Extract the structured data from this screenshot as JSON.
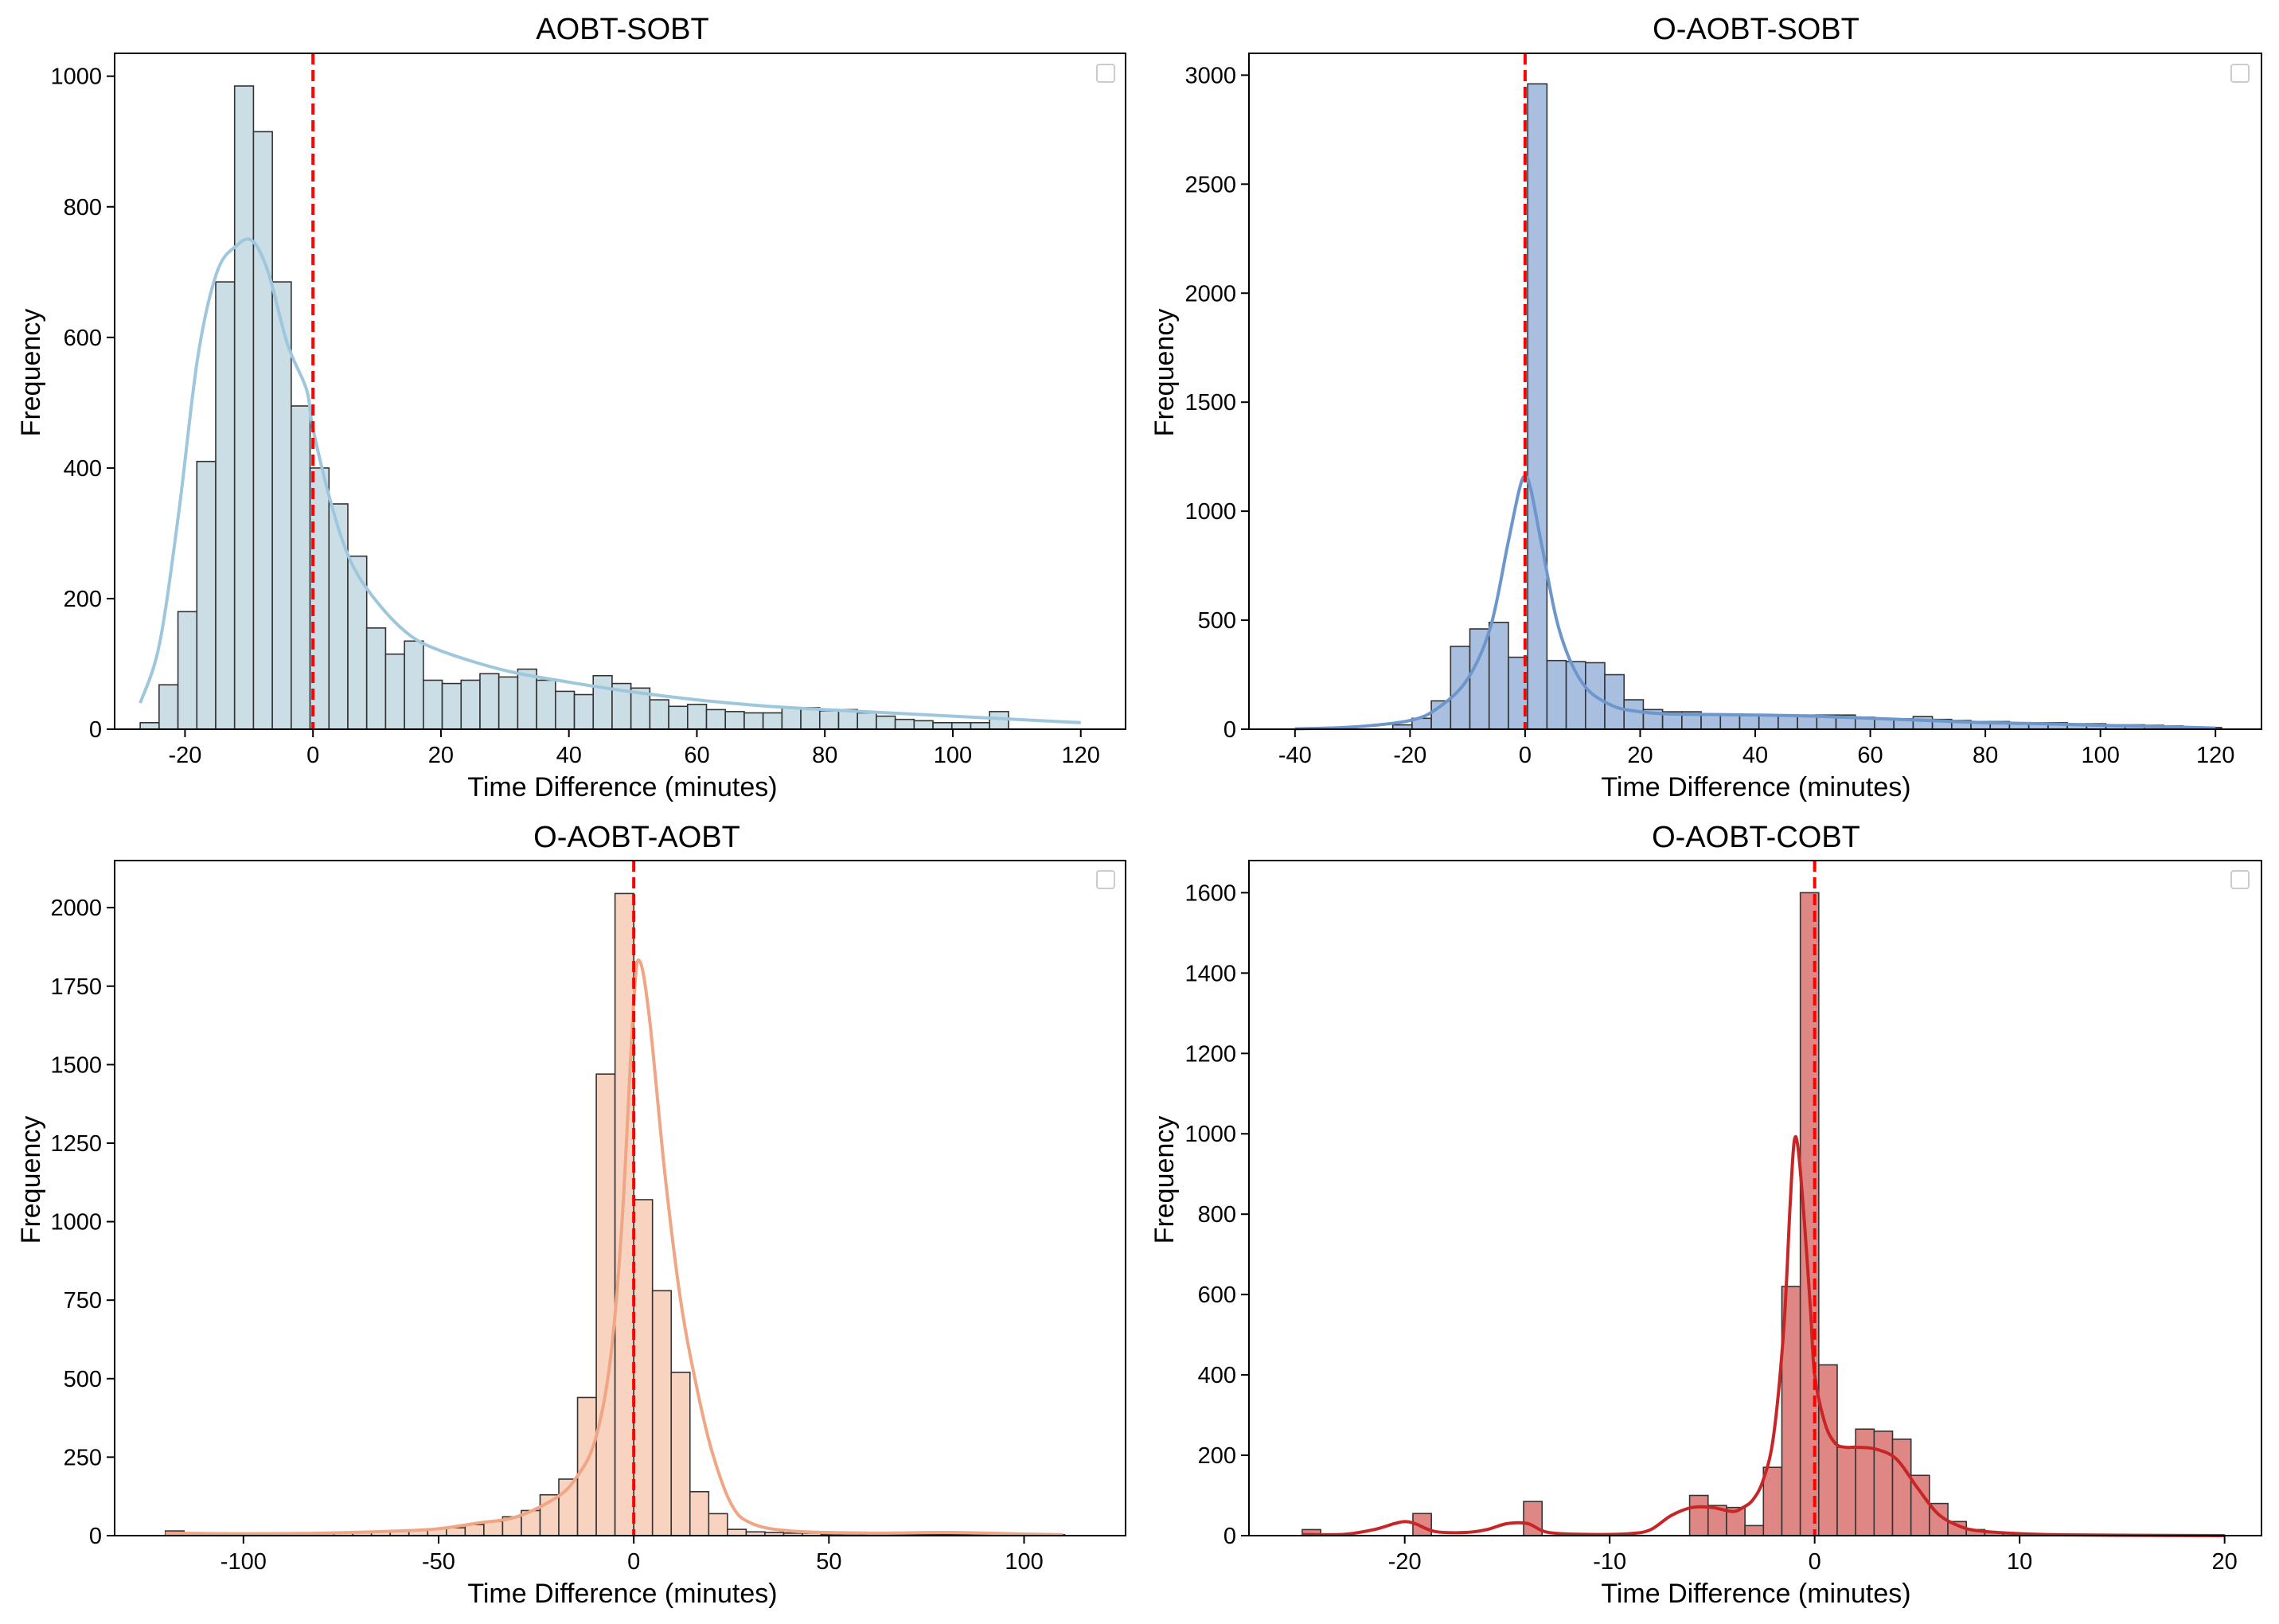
{
  "chart_data": [
    {
      "type": "histogram",
      "title": "AOBT-SOBT",
      "xlabel": "Time Difference (minutes)",
      "ylabel": "Frequency",
      "xlim": [
        -31,
        127
      ],
      "ylim": [
        0,
        1035
      ],
      "xticks": [
        -20,
        0,
        20,
        40,
        60,
        80,
        100,
        120
      ],
      "xtick_labels": [
        "-20",
        "0",
        "20",
        "40",
        "60",
        "80",
        "100",
        "120"
      ],
      "yticks": [
        0,
        200,
        400,
        600,
        800,
        1000
      ],
      "ytick_labels": [
        "0",
        "200",
        "400",
        "600",
        "800",
        "1000"
      ],
      "bin_start": -27,
      "bin_width": 2.95,
      "values": [
        10,
        68,
        180,
        410,
        685,
        985,
        915,
        685,
        495,
        400,
        345,
        265,
        155,
        115,
        135,
        75,
        70,
        75,
        85,
        80,
        92,
        75,
        58,
        53,
        82,
        70,
        63,
        45,
        35,
        38,
        30,
        27,
        25,
        25,
        33,
        33,
        28,
        30,
        25,
        20,
        15,
        13,
        10,
        10,
        10,
        27
      ],
      "kde_x": [
        -27,
        -24,
        -21,
        -18,
        -15,
        -12,
        -9.5,
        -7,
        -4,
        -1,
        0,
        3,
        6,
        10,
        15,
        20,
        30,
        40,
        50,
        60,
        70,
        80,
        90,
        100,
        110,
        120
      ],
      "kde_y": [
        40,
        130,
        330,
        570,
        700,
        740,
        748,
        700,
        590,
        520,
        460,
        340,
        255,
        195,
        145,
        120,
        90,
        72,
        57,
        45,
        36,
        30,
        25,
        20,
        15,
        10
      ],
      "vline_x": 0,
      "colors": {
        "bar": "#cbdee6",
        "kde": "#9ec7dd",
        "vline": "#ff0000"
      },
      "legend": "top-right"
    },
    {
      "type": "histogram",
      "title": "O-AOBT-SOBT",
      "xlabel": "Time Difference (minutes)",
      "ylabel": "Frequency",
      "xlim": [
        -48,
        128
      ],
      "ylim": [
        0,
        3100
      ],
      "xticks": [
        -40,
        -20,
        0,
        20,
        40,
        60,
        80,
        100,
        120
      ],
      "xtick_labels": [
        "-40",
        "-20",
        "0",
        "20",
        "40",
        "60",
        "80",
        "100",
        "120"
      ],
      "yticks": [
        0,
        500,
        1000,
        1500,
        2000,
        2500,
        3000
      ],
      "ytick_labels": [
        "0",
        "500",
        "1000",
        "1500",
        "2000",
        "2500",
        "3000"
      ],
      "bin_start": -23,
      "bin_width": 3.35,
      "values": [
        20,
        50,
        130,
        380,
        460,
        490,
        330,
        2960,
        315,
        310,
        305,
        250,
        135,
        90,
        80,
        80,
        70,
        65,
        65,
        65,
        65,
        65,
        65,
        65,
        55,
        50,
        48,
        58,
        45,
        40,
        35,
        35,
        30,
        30,
        30,
        25,
        25,
        20,
        20,
        18,
        15,
        10,
        8
      ],
      "kde_x": [
        -40,
        -30,
        -20,
        -15,
        -10,
        -6,
        -3,
        -1,
        0,
        1,
        3,
        6,
        10,
        15,
        20,
        25,
        30,
        40,
        50,
        60,
        70,
        80,
        90,
        100,
        110,
        120
      ],
      "kde_y": [
        2,
        10,
        40,
        100,
        230,
        470,
        850,
        1100,
        1160,
        1100,
        830,
        450,
        210,
        110,
        80,
        70,
        68,
        65,
        60,
        50,
        40,
        30,
        25,
        18,
        12,
        5
      ],
      "vline_x": 0,
      "colors": {
        "bar": "#a9bfe0",
        "kde": "#6d96cc",
        "vline": "#ff0000"
      },
      "legend": "top-right"
    },
    {
      "type": "histogram",
      "title": "O-AOBT-AOBT",
      "xlabel": "Time Difference (minutes)",
      "ylabel": "Frequency",
      "xlim": [
        -133,
        126
      ],
      "ylim": [
        0,
        2150
      ],
      "xticks": [
        -100,
        -50,
        0,
        50,
        100
      ],
      "xtick_labels": [
        "-100",
        "-50",
        "0",
        "50",
        "100"
      ],
      "yticks": [
        0,
        250,
        500,
        750,
        1000,
        1250,
        1500,
        1750,
        2000
      ],
      "ytick_labels": [
        "0",
        "250",
        "500",
        "750",
        "1000",
        "1250",
        "1500",
        "1750",
        "2000"
      ],
      "bin_start": -120,
      "bin_width": 4.8,
      "values": [
        15,
        3,
        3,
        3,
        5,
        5,
        8,
        8,
        10,
        10,
        12,
        12,
        15,
        18,
        22,
        25,
        35,
        45,
        60,
        80,
        130,
        180,
        440,
        1470,
        2045,
        1070,
        780,
        520,
        140,
        70,
        20,
        12,
        10,
        8,
        8,
        5,
        5,
        3,
        3,
        3,
        3,
        3,
        3,
        3,
        3,
        3,
        3,
        3
      ],
      "kde_x": [
        -120,
        -100,
        -80,
        -60,
        -50,
        -40,
        -30,
        -20,
        -15,
        -10,
        -6,
        -3,
        0,
        1.5,
        4,
        8,
        12,
        16,
        20,
        25,
        30,
        40,
        60,
        80,
        100,
        110
      ],
      "kde_y": [
        8,
        6,
        8,
        15,
        22,
        40,
        60,
        120,
        180,
        300,
        560,
        1000,
        1700,
        1830,
        1650,
        1150,
        750,
        480,
        270,
        100,
        40,
        15,
        8,
        10,
        5,
        3
      ],
      "vline_x": 0,
      "colors": {
        "bar": "#f8d3c0",
        "kde": "#f0a584",
        "vline": "#ff0000"
      },
      "legend": "top-right"
    },
    {
      "type": "histogram",
      "title": "O-AOBT-COBT",
      "xlabel": "Time Difference (minutes)",
      "ylabel": "Frequency",
      "xlim": [
        -27.6,
        21.8
      ],
      "ylim": [
        0,
        1680
      ],
      "xticks": [
        -20,
        -10,
        0,
        10,
        20
      ],
      "xtick_labels": [
        "-20",
        "-10",
        "0",
        "10",
        "20"
      ],
      "yticks": [
        0,
        200,
        400,
        600,
        800,
        1000,
        1200,
        1400,
        1600
      ],
      "ytick_labels": [
        "0",
        "200",
        "400",
        "600",
        "800",
        "1000",
        "1200",
        "1400",
        "1600"
      ],
      "bin_start": -25,
      "bin_width": 0.9,
      "values": [
        15,
        0,
        0,
        0,
        0,
        0,
        55,
        0,
        0,
        0,
        0,
        0,
        85,
        0,
        0,
        0,
        0,
        0,
        0,
        0,
        0,
        100,
        75,
        70,
        25,
        170,
        620,
        1600,
        425,
        220,
        265,
        260,
        240,
        150,
        80,
        35,
        15,
        8,
        5,
        3,
        2,
        2,
        2,
        1,
        1,
        1,
        1,
        1,
        1,
        1
      ],
      "kde_x": [
        -25,
        -23,
        -21.5,
        -20.5,
        -20,
        -19.5,
        -18.5,
        -17,
        -16,
        -15,
        -14,
        -13,
        -11,
        -9,
        -8,
        -7,
        -6,
        -5,
        -4,
        -3.5,
        -3,
        -2.5,
        -2,
        -1.5,
        -1.2,
        -1,
        -0.8,
        -0.5,
        -0.2,
        0,
        0.5,
        1,
        1.5,
        2,
        3,
        4,
        5,
        6,
        7,
        8,
        10,
        12,
        15,
        20
      ],
      "kde_y": [
        3,
        3,
        15,
        30,
        35,
        30,
        10,
        8,
        15,
        30,
        30,
        8,
        3,
        5,
        15,
        50,
        70,
        70,
        60,
        70,
        90,
        140,
        250,
        520,
        820,
        980,
        960,
        780,
        560,
        400,
        280,
        230,
        220,
        220,
        215,
        190,
        120,
        55,
        25,
        12,
        5,
        2,
        1,
        0
      ],
      "vline_x": 0,
      "colors": {
        "bar": "#df8785",
        "kde": "#c72626",
        "vline": "#ff0000"
      },
      "legend": "top-right"
    }
  ]
}
